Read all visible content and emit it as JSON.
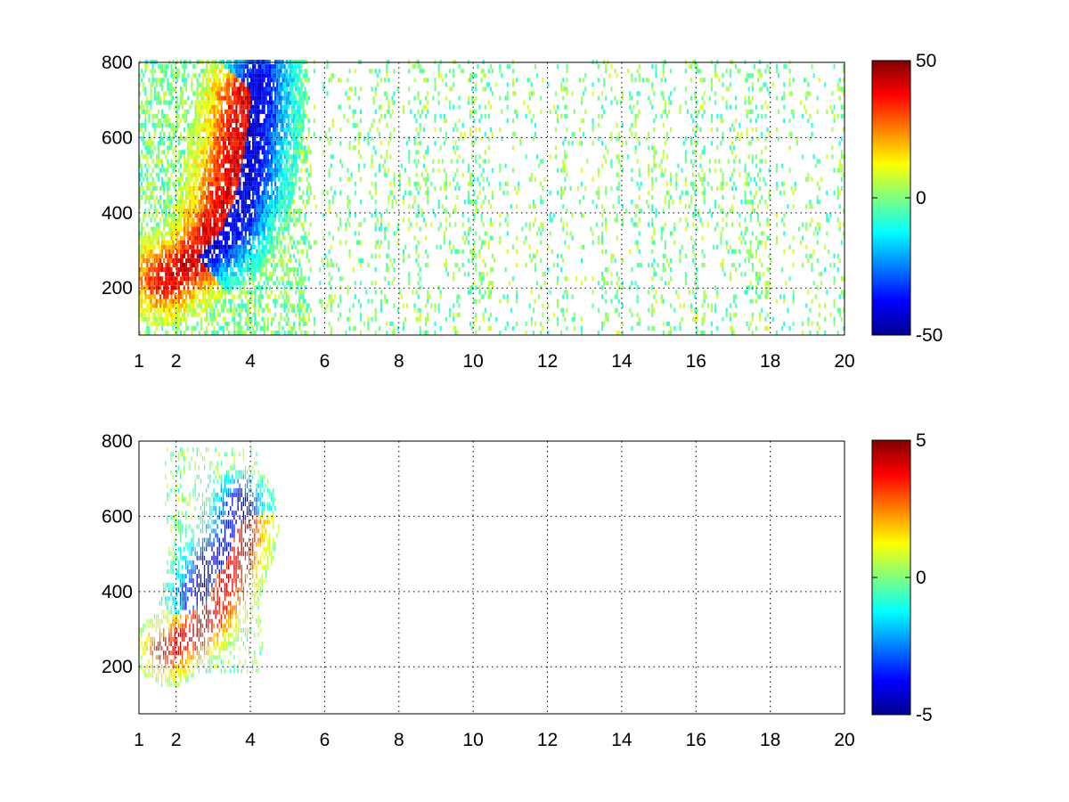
{
  "figure": {
    "background": "#ffffff"
  },
  "chart_data": [
    {
      "type": "heatmap",
      "title": "",
      "xlabel": "",
      "ylabel": "",
      "xlim": [
        1,
        20
      ],
      "ylim": [
        75,
        800
      ],
      "x_ticks": [
        1,
        2,
        4,
        6,
        8,
        10,
        12,
        14,
        16,
        18,
        20
      ],
      "y_ticks": [
        200,
        400,
        600,
        800
      ],
      "grid": true,
      "grid_style": "dotted",
      "colormap": "jet",
      "clim": [
        -50,
        50
      ],
      "colorbar_ticks": [
        -50,
        0,
        50
      ],
      "features": [
        {
          "name": "positive ridge",
          "points": [
            [
              1.7,
              220
            ],
            [
              2.4,
              260
            ],
            [
              2.9,
              320
            ],
            [
              3.3,
              420
            ],
            [
              3.6,
              560
            ],
            [
              3.8,
              700
            ]
          ],
          "peak_value": 40
        },
        {
          "name": "negative ridge",
          "points": [
            [
              2.6,
              280
            ],
            [
              3.2,
              320
            ],
            [
              3.6,
              380
            ],
            [
              3.9,
              470
            ],
            [
              4.1,
              600
            ],
            [
              4.2,
              750
            ]
          ],
          "peak_value": -40
        }
      ],
      "noise_region": {
        "x_range": [
          4,
          20
        ],
        "value_range": [
          -10,
          10
        ],
        "density": "sparse"
      }
    },
    {
      "type": "heatmap",
      "title": "",
      "xlabel": "",
      "ylabel": "",
      "xlim": [
        1,
        20
      ],
      "ylim": [
        75,
        800
      ],
      "x_ticks": [
        1,
        2,
        4,
        6,
        8,
        10,
        12,
        14,
        16,
        18,
        20
      ],
      "y_ticks": [
        200,
        400,
        600,
        800
      ],
      "grid": true,
      "grid_style": "dotted",
      "colormap": "jet",
      "clim": [
        -5,
        5
      ],
      "colorbar_ticks": [
        -5,
        0,
        5
      ],
      "features": [
        {
          "name": "positive streak",
          "points": [
            [
              1.8,
              240
            ],
            [
              2.4,
              280
            ],
            [
              2.9,
              330
            ],
            [
              3.3,
              400
            ],
            [
              3.6,
              480
            ],
            [
              3.8,
              560
            ]
          ],
          "peak_value": 4
        },
        {
          "name": "negative patch",
          "points": [
            [
              2.5,
              380
            ],
            [
              2.8,
              450
            ],
            [
              3.2,
              500
            ],
            [
              3.5,
              560
            ],
            [
              3.7,
              630
            ]
          ],
          "peak_value": -4
        }
      ],
      "data_extent": {
        "x_range": [
          1.7,
          4.3
        ],
        "y_range": [
          180,
          780
        ]
      }
    }
  ]
}
